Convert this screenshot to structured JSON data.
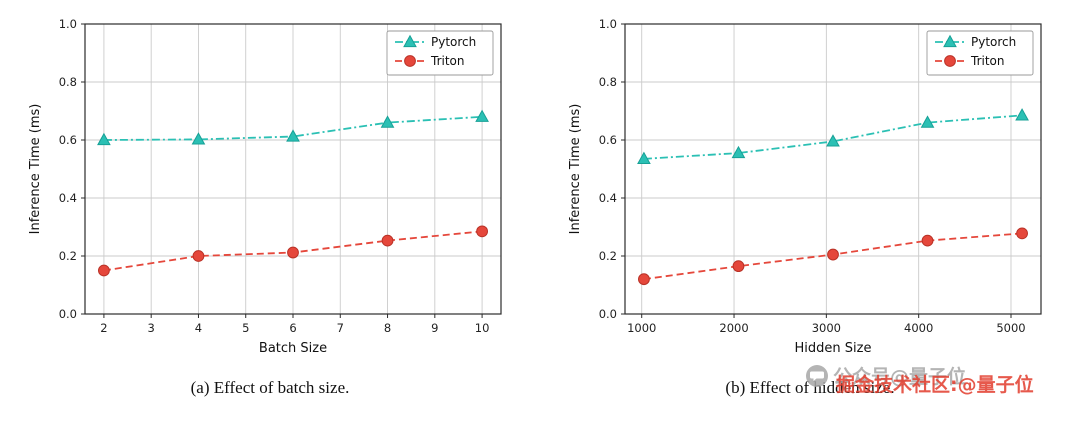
{
  "chart_data": [
    {
      "type": "line",
      "caption": "(a) Effect of batch size.",
      "xlabel": "Batch Size",
      "ylabel": "Inference Time (ms)",
      "x": [
        2,
        4,
        6,
        8,
        10
      ],
      "xticks": [
        2,
        3,
        4,
        5,
        6,
        7,
        8,
        9,
        10
      ],
      "xlim": [
        1.6,
        10.4
      ],
      "ylim": [
        0.0,
        1.0
      ],
      "yticks": [
        0.0,
        0.2,
        0.4,
        0.6,
        0.8,
        1.0
      ],
      "grid": true,
      "legend_position": "upper right",
      "series": [
        {
          "name": "Pytorch",
          "color": "#2bc0b4",
          "edge": "#17a096",
          "marker": "triangle",
          "dash": "8,3,2,3",
          "values": [
            0.6,
            0.602,
            0.612,
            0.66,
            0.68
          ]
        },
        {
          "name": "Triton",
          "color": "#e5473b",
          "edge": "#b93227",
          "marker": "circle",
          "dash": "7,4",
          "values": [
            0.15,
            0.2,
            0.212,
            0.253,
            0.285
          ]
        }
      ]
    },
    {
      "type": "line",
      "caption": "(b) Effect of hidden size.",
      "xlabel": "Hidden Size",
      "ylabel": "Inference Time (ms)",
      "x": [
        1024,
        2048,
        3072,
        4096,
        5120
      ],
      "xticks": [
        1000,
        2000,
        3000,
        4000,
        5000
      ],
      "xlim": [
        819,
        5325
      ],
      "ylim": [
        0.0,
        1.0
      ],
      "yticks": [
        0.0,
        0.2,
        0.4,
        0.6,
        0.8,
        1.0
      ],
      "grid": true,
      "legend_position": "upper right",
      "series": [
        {
          "name": "Pytorch",
          "color": "#2bc0b4",
          "edge": "#17a096",
          "marker": "triangle",
          "dash": "8,3,2,3",
          "values": [
            0.535,
            0.555,
            0.595,
            0.66,
            0.685
          ]
        },
        {
          "name": "Triton",
          "color": "#e5473b",
          "edge": "#b93227",
          "marker": "circle",
          "dash": "7,4",
          "values": [
            0.12,
            0.165,
            0.205,
            0.253,
            0.278
          ]
        }
      ]
    }
  ],
  "watermark": {
    "icon": "chat-bubble-icon",
    "gray_text": "公众号@量子位",
    "red_text": "掘金技术社区:@量子位",
    "gray_color": "#a8a8a8",
    "red_color": "#e23d2d"
  }
}
